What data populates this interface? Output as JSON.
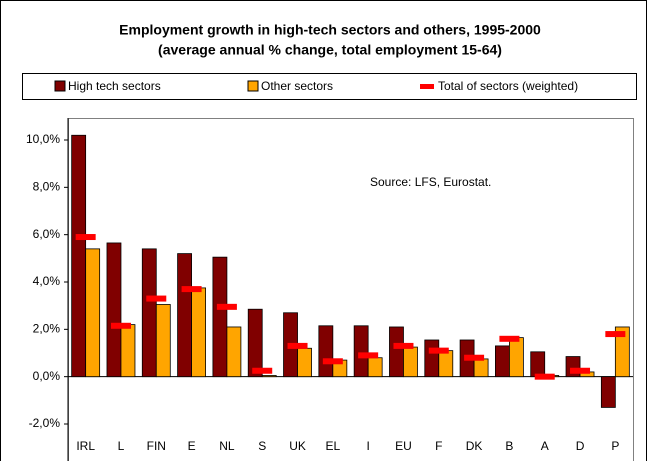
{
  "chart_data": {
    "type": "bar",
    "title": "Employment growth in high-tech sectors and others, 1995-2000",
    "subtitle": "(average annual % change, total employment 15-64)",
    "annotation": "Source: LFS, Eurostat.",
    "categories": [
      "IRL",
      "L",
      "FIN",
      "E",
      "NL",
      "S",
      "UK",
      "EL",
      "I",
      "EU",
      "F",
      "DK",
      "B",
      "A",
      "D",
      "P"
    ],
    "series": [
      {
        "name": "High tech sectors",
        "color": "#800000",
        "values": [
          10.2,
          5.65,
          5.4,
          5.2,
          5.05,
          2.85,
          2.7,
          2.15,
          2.15,
          2.1,
          1.55,
          1.55,
          1.3,
          1.05,
          0.85,
          -1.3
        ]
      },
      {
        "name": "Other sectors",
        "color": "#ffa500",
        "values": [
          5.4,
          2.2,
          3.05,
          3.75,
          2.1,
          0.05,
          1.2,
          0.7,
          0.8,
          1.25,
          1.1,
          0.75,
          1.65,
          0.05,
          0.2,
          2.1
        ]
      },
      {
        "name": "Total of sectors (weighted)",
        "color": "#ff0000",
        "values": [
          5.9,
          2.15,
          3.3,
          3.7,
          2.95,
          0.25,
          1.3,
          0.65,
          0.9,
          1.3,
          1.1,
          0.8,
          1.6,
          0.0,
          0.25,
          1.8
        ]
      }
    ],
    "ylim": [
      -2,
      10
    ],
    "yticks": [
      {
        "value": -2,
        "label": "-2,0%"
      },
      {
        "value": 0,
        "label": "0,0%"
      },
      {
        "value": 2,
        "label": "2,0%"
      },
      {
        "value": 4,
        "label": "4,0%"
      },
      {
        "value": 6,
        "label": "6,0%"
      },
      {
        "value": 8,
        "label": "8,0%"
      },
      {
        "value": 10,
        "label": "10,0%"
      }
    ]
  }
}
